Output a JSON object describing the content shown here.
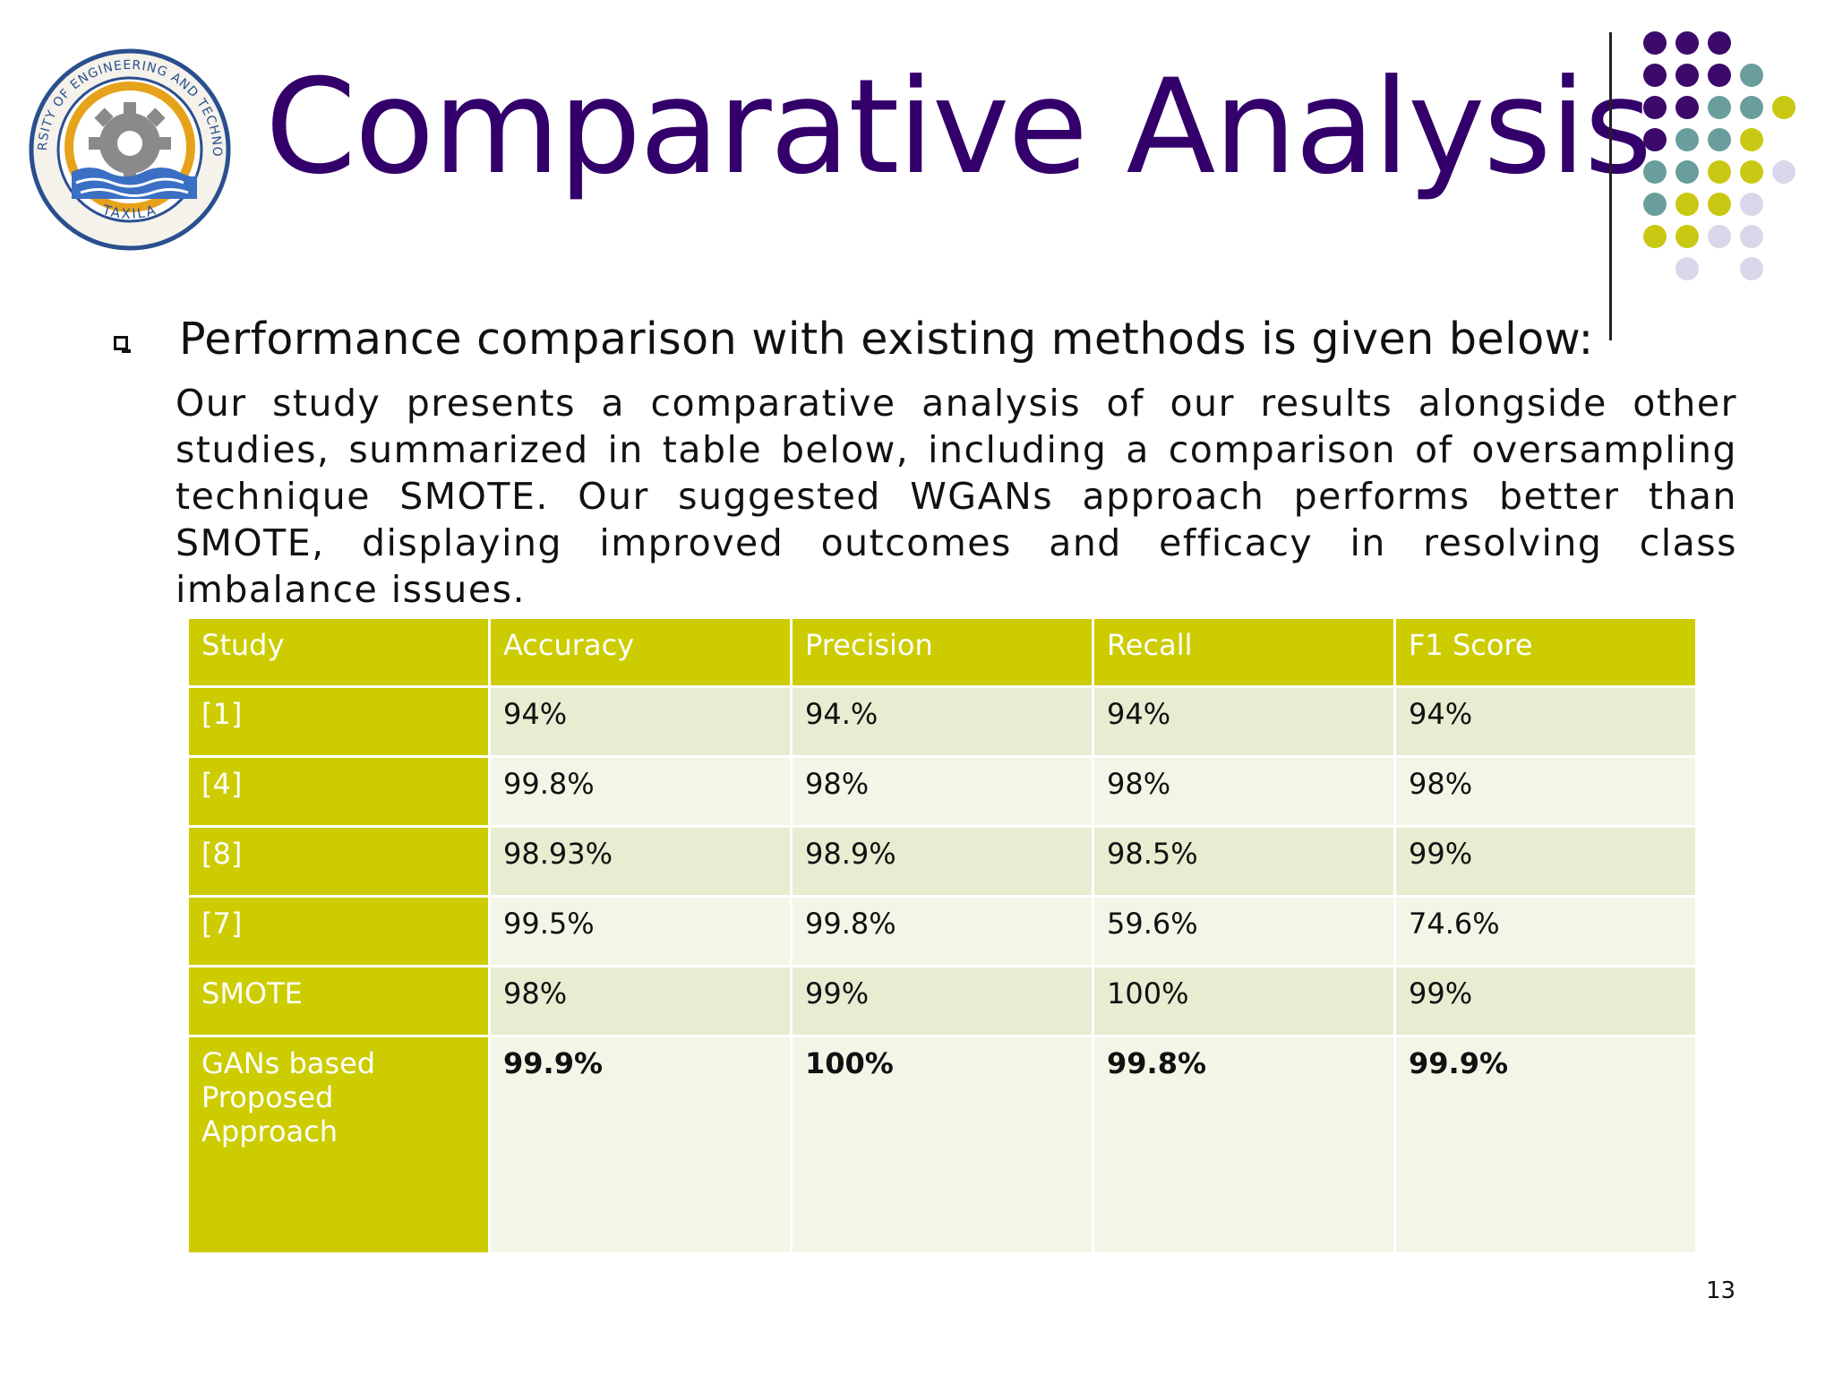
{
  "logo": {
    "seal_text_top": "UNIVERSITY OF ENGINEERING AND TECHNOLOGY",
    "seal_text_bottom": "TAXILA"
  },
  "title": "Comparative Analysis",
  "bullet": "Performance comparison with existing methods is given below:",
  "paragraph": "Our study presents a comparative analysis of our results alongside other studies, summarized in table below, including a comparison of oversampling technique SMOTE. Our suggested WGANs approach performs better than SMOTE, displaying improved outcomes and efficacy in resolving class imbalance issues.",
  "table": {
    "headers": [
      "Study",
      "Accuracy",
      "Precision",
      "Recall",
      "F1 Score"
    ],
    "rows": [
      [
        "[1]",
        "94%",
        "94.%",
        "94%",
        "94%"
      ],
      [
        "[4]",
        "99.8%",
        "98%",
        "98%",
        "98%"
      ],
      [
        "[8]",
        "98.93%",
        "98.9%",
        "98.5%",
        "99%"
      ],
      [
        "[7]",
        "99.5%",
        "99.8%",
        "59.6%",
        "74.6%"
      ],
      [
        "SMOTE",
        "98%",
        "99%",
        "100%",
        "99%"
      ],
      [
        "GANs based Proposed Approach",
        "99.9%",
        "100%",
        "99.8%",
        "99.9%"
      ]
    ]
  },
  "page_number": "13",
  "colors": {
    "title": "#33006b",
    "table_accent": "#cccc00",
    "row_tint_a": "#e8ecd0",
    "row_tint_b": "#f3f5e7",
    "dot_purple": "#3b0a6b",
    "dot_teal": "#6a9e9c",
    "dot_lime": "#c9c812",
    "dot_lavender": "#d9d8ea"
  }
}
